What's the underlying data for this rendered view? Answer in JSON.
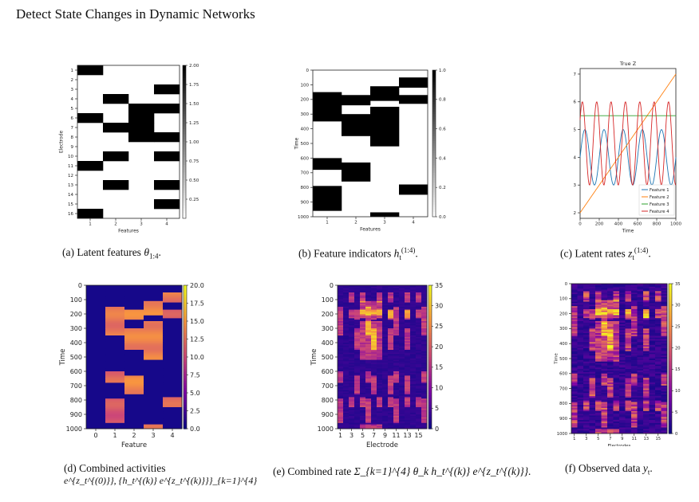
{
  "header": "Detect State Changes in Dynamic Networks",
  "captions": {
    "a": {
      "label": "(a) Latent features ",
      "math": "θ",
      "sub": "1:4",
      "tail": "."
    },
    "b": {
      "label": "(b) Feature indicators ",
      "math": "h",
      "sub": "t",
      "sup": "(1:4)",
      "tail": "."
    },
    "c": {
      "label": "(c) Latent rates ",
      "math": "z",
      "sub": "t",
      "sup": "(1:4)",
      "tail": "."
    },
    "d": {
      "label": "(d) Combined activities",
      "line2": "e^{z_t^{(0)}}, {h_t^{(k)} e^{z_t^{(k)}}}_{k=1}^{4}"
    },
    "e": {
      "label": "(e) Combined rate ",
      "expr": "Σ_{k=1}^{4} θ_k h_t^{(k)} e^{z_t^{(k)}}."
    },
    "f": {
      "label": "(f) Observed data ",
      "math": "y",
      "sub": "t",
      "tail": "."
    }
  },
  "chart_data": [
    {
      "type": "heatmap",
      "id": "a",
      "xlabel": "Features",
      "ylabel": "Electrode",
      "xticks": [
        "1",
        "2",
        "3",
        "4"
      ],
      "yticks": [
        "1",
        "2",
        "3",
        "4",
        "5",
        "6",
        "7",
        "8",
        "9",
        "10",
        "11",
        "12",
        "13",
        "14",
        "15",
        "16"
      ],
      "colorbar_ticks": [
        "2.00",
        "1.75",
        "1.50",
        "1.25",
        "1.00",
        "0.75",
        "0.50",
        "0.25"
      ],
      "cmap": "gray",
      "clim": [
        0,
        2
      ],
      "matrix": [
        [
          1,
          0,
          0,
          0
        ],
        [
          0,
          0,
          0,
          0
        ],
        [
          0,
          0,
          0,
          1
        ],
        [
          0,
          1,
          0,
          0
        ],
        [
          0,
          0,
          1,
          1
        ],
        [
          1,
          0,
          1,
          0
        ],
        [
          0,
          1,
          1,
          0
        ],
        [
          0,
          0,
          1,
          1
        ],
        [
          0,
          0,
          0,
          0
        ],
        [
          0,
          1,
          0,
          1
        ],
        [
          1,
          0,
          0,
          0
        ],
        [
          0,
          0,
          0,
          0
        ],
        [
          0,
          1,
          0,
          1
        ],
        [
          0,
          0,
          0,
          0
        ],
        [
          0,
          0,
          0,
          1
        ],
        [
          1,
          0,
          0,
          0
        ]
      ]
    },
    {
      "type": "heatmap",
      "id": "b",
      "xlabel": "Features",
      "ylabel": "Time",
      "xticks": [
        "1",
        "2",
        "3",
        "4"
      ],
      "yticks": [
        "0",
        "100",
        "200",
        "300",
        "400",
        "500",
        "600",
        "700",
        "800",
        "900",
        "1000"
      ],
      "colorbar_ticks": [
        "1.0",
        "0.8",
        "0.6",
        "0.4",
        "0.2",
        "0.0"
      ],
      "cmap": "gray",
      "clim": [
        0,
        1
      ],
      "segments": [
        [
          [
            150,
            350
          ],
          [
            600,
            680
          ],
          [
            790,
            960
          ]
        ],
        [
          [
            170,
            240
          ],
          [
            300,
            450
          ],
          [
            630,
            760
          ]
        ],
        [
          [
            110,
            210
          ],
          [
            250,
            520
          ],
          [
            970,
            1000
          ]
        ],
        [
          [
            50,
            120
          ],
          [
            170,
            230
          ],
          [
            780,
            850
          ]
        ]
      ]
    },
    {
      "type": "line",
      "id": "c",
      "title": "True Z",
      "xlabel": "Time",
      "xlim": [
        0,
        1000
      ],
      "ylim": [
        1.8,
        7.2
      ],
      "xticks": [
        "0",
        "200",
        "400",
        "600",
        "800",
        "1000"
      ],
      "yticks": [
        "2",
        "3",
        "4",
        "5",
        "6",
        "7"
      ],
      "legend": "bottom-right",
      "series": [
        {
          "name": "Feature 1",
          "color": "#1f77b4",
          "kind": "sin",
          "offset": 4,
          "amp": 1,
          "period": 200,
          "phase": 0
        },
        {
          "name": "Feature 2",
          "color": "#ff7f0e",
          "kind": "linear",
          "from": 2,
          "to": 7
        },
        {
          "name": "Feature 3",
          "color": "#2ca02c",
          "kind": "const",
          "value": 5.5
        },
        {
          "name": "Feature 4",
          "color": "#d62728",
          "kind": "sin",
          "offset": 4.5,
          "amp": 1.5,
          "period": 150,
          "phase": 0.6
        }
      ]
    },
    {
      "type": "heatmap",
      "id": "d",
      "xlabel": "Feature",
      "ylabel": "Time",
      "xticks": [
        "0",
        "1",
        "2",
        "3",
        "4"
      ],
      "yticks": [
        "0",
        "100",
        "200",
        "300",
        "400",
        "500",
        "600",
        "700",
        "800",
        "900",
        "1000"
      ],
      "colorbar_ticks": [
        "20.0",
        "17.5",
        "15.0",
        "12.5",
        "10.0",
        "7.5",
        "5.0",
        "2.5",
        "0.0"
      ],
      "cmap": "plasma",
      "clim": [
        0,
        20
      ]
    },
    {
      "type": "heatmap",
      "id": "e",
      "xlabel": "Electrode",
      "ylabel": "Time",
      "xticks": [
        "1",
        "3",
        "5",
        "7",
        "9",
        "11",
        "13",
        "15"
      ],
      "yticks": [
        "0",
        "100",
        "200",
        "300",
        "400",
        "500",
        "600",
        "700",
        "800",
        "900",
        "1000"
      ],
      "colorbar_ticks": [
        "35",
        "30",
        "25",
        "20",
        "15",
        "10",
        "5",
        "0"
      ],
      "cmap": "plasma",
      "clim": [
        0,
        35
      ]
    },
    {
      "type": "heatmap",
      "id": "f",
      "xlabel": "Electrodes",
      "ylabel": "Time",
      "xticks": [
        "1",
        "3",
        "5",
        "7",
        "9",
        "11",
        "13",
        "15"
      ],
      "yticks": [
        "0",
        "100",
        "200",
        "300",
        "400",
        "500",
        "600",
        "700",
        "800",
        "900",
        "1000"
      ],
      "colorbar_ticks": [
        "35",
        "30",
        "25",
        "20",
        "15",
        "10",
        "5",
        "0"
      ],
      "cmap": "plasma",
      "clim": [
        0,
        35
      ]
    }
  ]
}
